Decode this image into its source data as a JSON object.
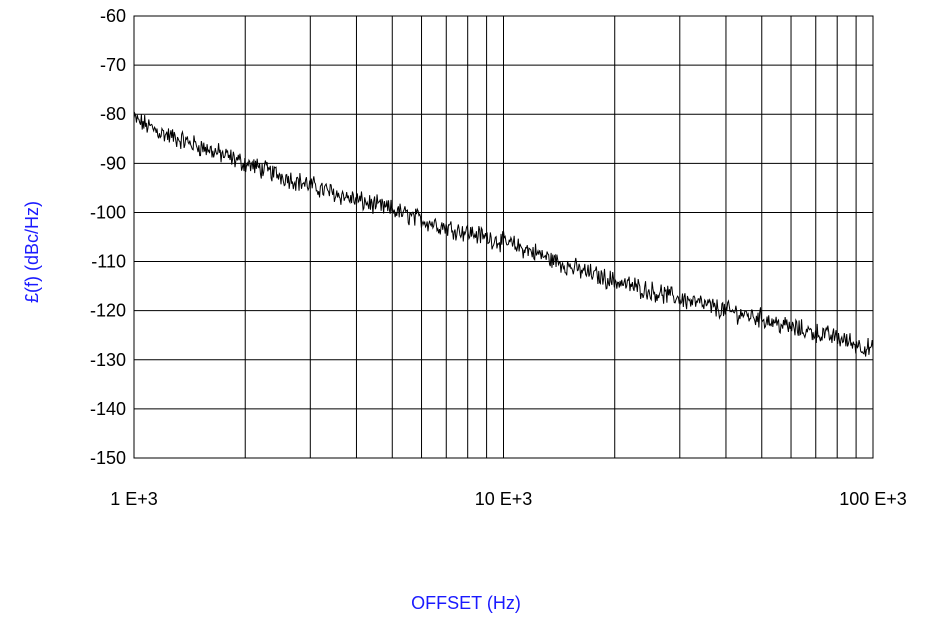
{
  "chart_data": {
    "type": "line",
    "title": "",
    "xlabel": "OFFSET (Hz)",
    "ylabel": "£(f) (dBc/Hz)",
    "xscale": "log",
    "xlim": [
      1000,
      100000
    ],
    "ylim": [
      -150,
      -60
    ],
    "yticks": [
      {
        "value": -60,
        "label": "-60"
      },
      {
        "value": -70,
        "label": "-70"
      },
      {
        "value": -80,
        "label": "-80"
      },
      {
        "value": -90,
        "label": "-90"
      },
      {
        "value": -100,
        "label": "-100"
      },
      {
        "value": -110,
        "label": "-110"
      },
      {
        "value": -120,
        "label": "-120"
      },
      {
        "value": -130,
        "label": "-130"
      },
      {
        "value": -140,
        "label": "-140"
      },
      {
        "value": -150,
        "label": "-150"
      }
    ],
    "xticks": [
      {
        "value": 1000,
        "label": "1 E+3"
      },
      {
        "value": 10000,
        "label": "10 E+3"
      },
      {
        "value": 100000,
        "label": "100 E+3"
      }
    ],
    "grid": "on",
    "legend": "none",
    "line_color": "#000000",
    "label_color": "#1a1aff",
    "series": [
      {
        "x": [
          1000,
          1200,
          1500,
          2000,
          2500,
          3000,
          4000,
          5000,
          6000,
          7000,
          8000,
          10000,
          12000,
          15000,
          20000,
          25000,
          30000,
          40000,
          50000,
          60000,
          70000,
          80000,
          100000
        ],
        "values": [
          -81,
          -84,
          -86.5,
          -90,
          -92.5,
          -94.5,
          -97.5,
          -99.5,
          -101.5,
          -103,
          -104,
          -106,
          -108,
          -111,
          -114,
          -116,
          -117.5,
          -120,
          -121.5,
          -123.5,
          -124.5,
          -125.5,
          -128
        ]
      }
    ]
  }
}
